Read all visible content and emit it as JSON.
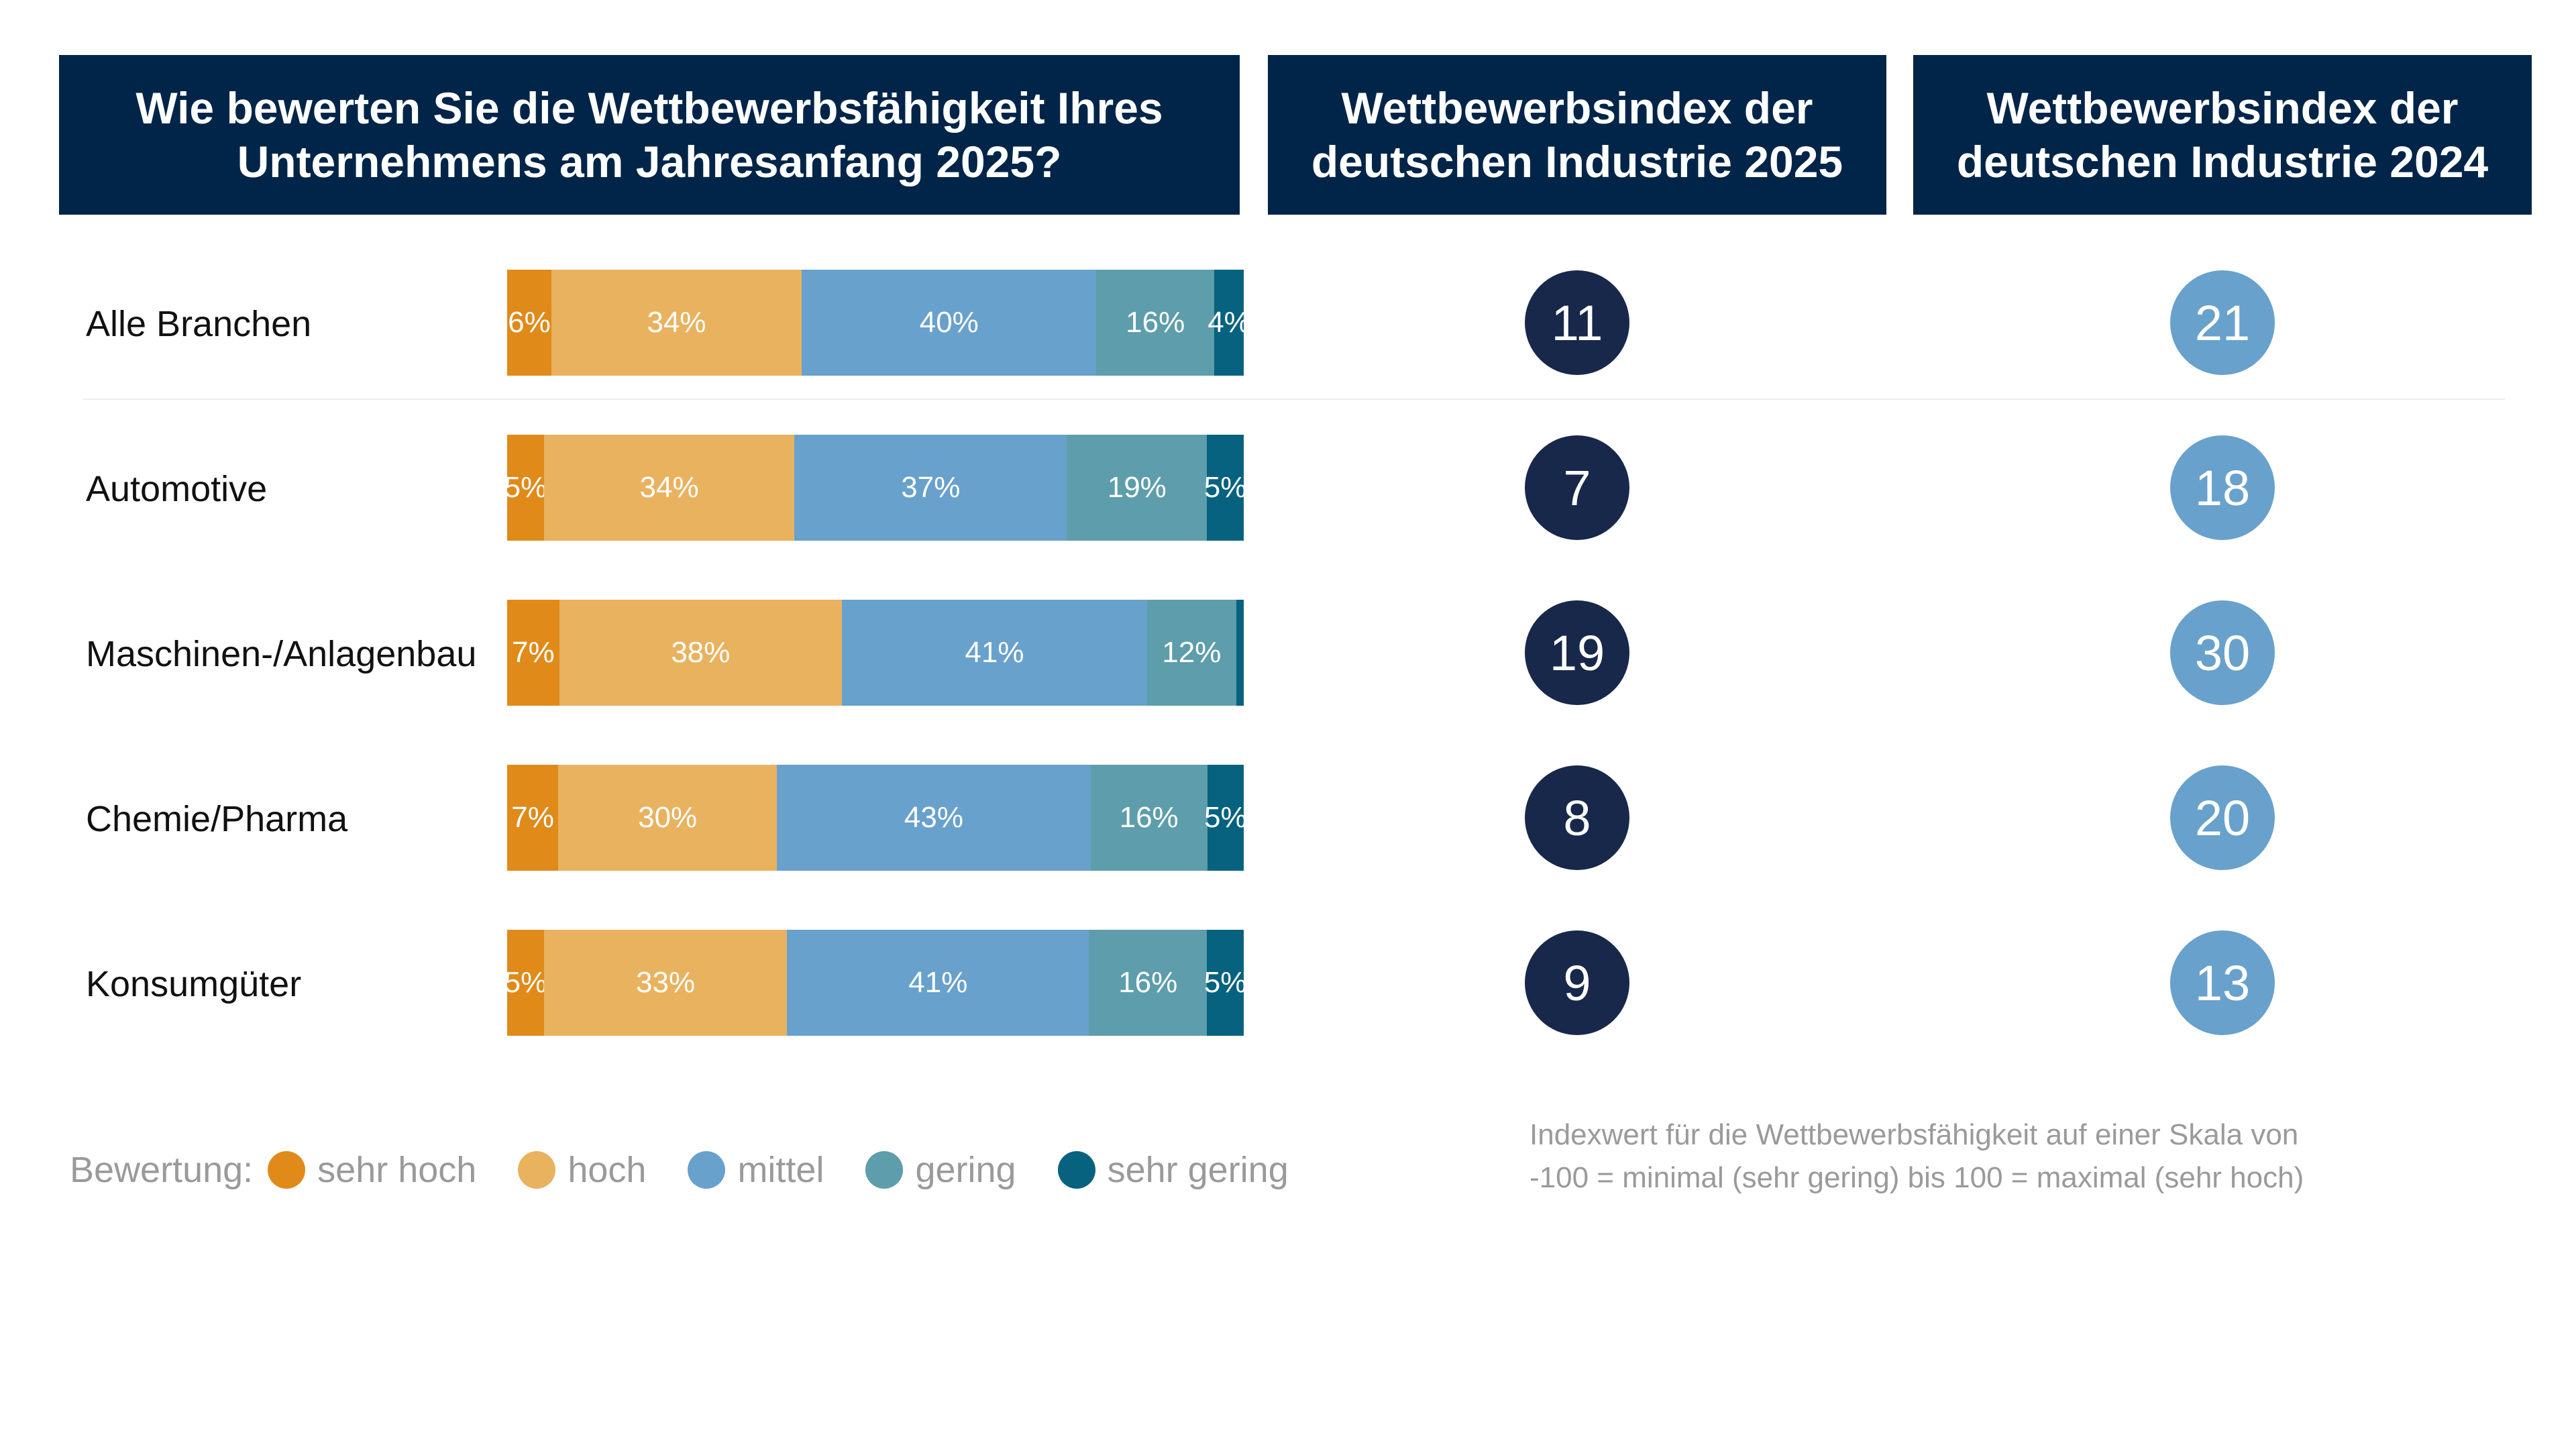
{
  "headers": {
    "left": "Wie bewerten Sie die Wettbewerbsfähigkeit Ihres\nUnternehmens am Jahresanfang 2025?",
    "mid": "Wettbewerbsindex der\ndeutschen Industrie 2025",
    "right": "Wettbewerbsindex der\ndeutschen Industrie 2024"
  },
  "legend": {
    "title": "Bewertung:",
    "items": [
      {
        "label": "sehr hoch",
        "color": "#e08a1a"
      },
      {
        "label": "hoch",
        "color": "#e9b25f"
      },
      {
        "label": "mittel",
        "color": "#68a1cc"
      },
      {
        "label": "gering",
        "color": "#5e9dab"
      },
      {
        "label": "sehr gering",
        "color": "#06627f"
      }
    ]
  },
  "note": "Indexwert für die Wettbewerbsfähigkeit auf einer Skala von\n-100 = minimal (sehr gering) bis 100 = maximal (sehr hoch)",
  "chart_data": {
    "type": "bar",
    "orientation": "horizontal",
    "stacked": true,
    "categories": [
      "Alle Branchen",
      "Automotive",
      "Maschinen-/Anlagenbau",
      "Chemie/Pharma",
      "Konsumgüter"
    ],
    "series": [
      {
        "name": "sehr hoch",
        "color": "#e08a1a",
        "values": [
          6,
          5,
          7,
          7,
          5
        ],
        "labels": [
          "6%",
          "5%",
          "7%",
          "7%",
          "5%"
        ]
      },
      {
        "name": "hoch",
        "color": "#e9b25f",
        "values": [
          34,
          34,
          38,
          30,
          33
        ],
        "labels": [
          "34%",
          "34%",
          "38%",
          "30%",
          "33%"
        ]
      },
      {
        "name": "mittel",
        "color": "#68a1cc",
        "values": [
          40,
          37,
          41,
          43,
          41
        ],
        "labels": [
          "40%",
          "37%",
          "41%",
          "43%",
          "41%"
        ]
      },
      {
        "name": "gering",
        "color": "#5e9dab",
        "values": [
          16,
          19,
          12,
          16,
          16
        ],
        "labels": [
          "16%",
          "19%",
          "12%",
          "16%",
          "16%"
        ]
      },
      {
        "name": "sehr gering",
        "color": "#06627f",
        "values": [
          4,
          5,
          1,
          5,
          5
        ],
        "labels": [
          "4%",
          "5%",
          "",
          "5%",
          "5%"
        ]
      }
    ],
    "index_2025": [
      11,
      7,
      19,
      8,
      9
    ],
    "index_2024": [
      21,
      18,
      30,
      20,
      13
    ],
    "index_2025_color": "#17284a",
    "index_2024_color": "#68a1cc"
  }
}
